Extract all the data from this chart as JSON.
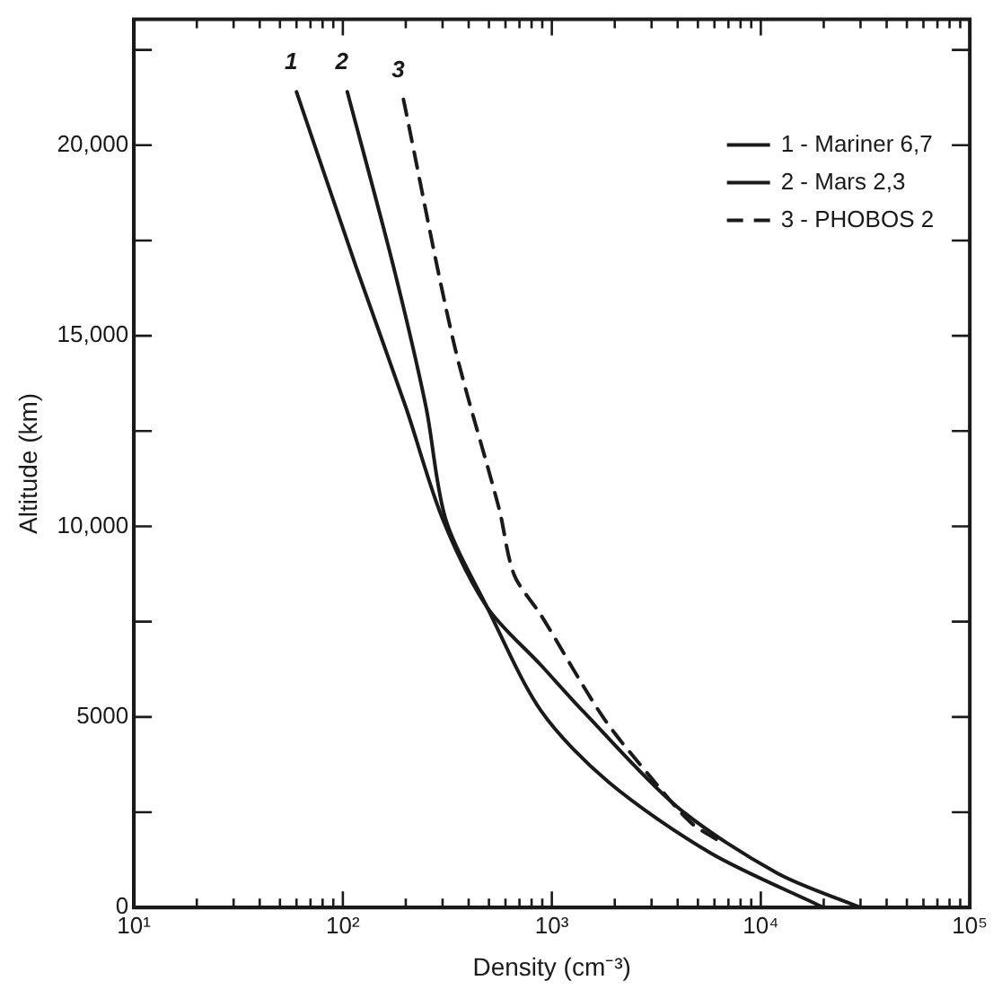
{
  "chart_data": {
    "type": "line",
    "xlabel": "Density (cm⁻³)",
    "ylabel": "Altitude (km)",
    "log": "x",
    "xlim": [
      10,
      100000
    ],
    "xticks": [
      {
        "value": 10,
        "label": "10¹"
      },
      {
        "value": 20,
        "label": null
      },
      {
        "value": 30,
        "label": null
      },
      {
        "value": 40,
        "label": null
      },
      {
        "value": 50,
        "label": null
      },
      {
        "value": 60,
        "label": null
      },
      {
        "value": 70,
        "label": null
      },
      {
        "value": 80,
        "label": null
      },
      {
        "value": 90,
        "label": null
      },
      {
        "value": 100,
        "label": "10²"
      },
      {
        "value": 200,
        "label": null
      },
      {
        "value": 300,
        "label": null
      },
      {
        "value": 400,
        "label": null
      },
      {
        "value": 500,
        "label": null
      },
      {
        "value": 600,
        "label": null
      },
      {
        "value": 700,
        "label": null
      },
      {
        "value": 800,
        "label": null
      },
      {
        "value": 900,
        "label": null
      },
      {
        "value": 1000,
        "label": "10³"
      },
      {
        "value": 2000,
        "label": null
      },
      {
        "value": 3000,
        "label": null
      },
      {
        "value": 4000,
        "label": null
      },
      {
        "value": 5000,
        "label": null
      },
      {
        "value": 6000,
        "label": null
      },
      {
        "value": 7000,
        "label": null
      },
      {
        "value": 8000,
        "label": null
      },
      {
        "value": 9000,
        "label": null
      },
      {
        "value": 10000,
        "label": "10⁴"
      },
      {
        "value": 20000,
        "label": null
      },
      {
        "value": 30000,
        "label": null
      },
      {
        "value": 40000,
        "label": null
      },
      {
        "value": 50000,
        "label": null
      },
      {
        "value": 60000,
        "label": null
      },
      {
        "value": 70000,
        "label": null
      },
      {
        "value": 80000,
        "label": null
      },
      {
        "value": 90000,
        "label": null
      },
      {
        "value": 100000,
        "label": "10⁵"
      }
    ],
    "ylim": [
      0,
      23300
    ],
    "yticks": [
      0,
      {
        "value": 2500,
        "label": null
      },
      5000,
      {
        "value": 7500,
        "label": null
      },
      {
        "value": 10000,
        "label": "10,000"
      },
      {
        "value": 12500,
        "label": null
      },
      {
        "value": 15000,
        "label": "15,000"
      },
      {
        "value": 17500,
        "label": null
      },
      {
        "value": 20000,
        "label": "20,000"
      },
      {
        "value": 22500,
        "label": null
      }
    ],
    "grid": false,
    "legend": "top right",
    "marker": "none",
    "series": [
      {
        "name": "1 - Mariner 6,7",
        "color": "#1a1a1a",
        "line_style": "solid",
        "x": [
          60,
          115,
          200,
          300,
          490,
          890,
          1410,
          4000,
          12000,
          30000
        ],
        "values": [
          21400,
          16850,
          13130,
          10200,
          7880,
          6350,
          5150,
          2630,
          900,
          0
        ]
      },
      {
        "name": "2 - Mars 2,3",
        "color": "#1a1a1a",
        "line_style": "solid",
        "x": [
          105,
          174,
          250,
          310,
          490,
          890,
          1870,
          5750,
          20000
        ],
        "values": [
          21400,
          16850,
          13130,
          10200,
          7880,
          5150,
          3290,
          1430,
          0
        ]
      },
      {
        "name": "3 - PHOBOS 2",
        "color": "#1a1a1a",
        "line_style": "dashed",
        "x": [
          195,
          340,
          560,
          660,
          890,
          1750,
          2950,
          4600,
          6200
        ],
        "values": [
          21200,
          14800,
          10450,
          8730,
          7660,
          5010,
          3440,
          2240,
          1770
        ]
      }
    ],
    "annotations": [
      {
        "text": "1",
        "x": 60,
        "y": 21400
      },
      {
        "text": "2",
        "x": 105,
        "y": 21400
      },
      {
        "text": "3",
        "x": 195,
        "y": 21200
      }
    ]
  }
}
